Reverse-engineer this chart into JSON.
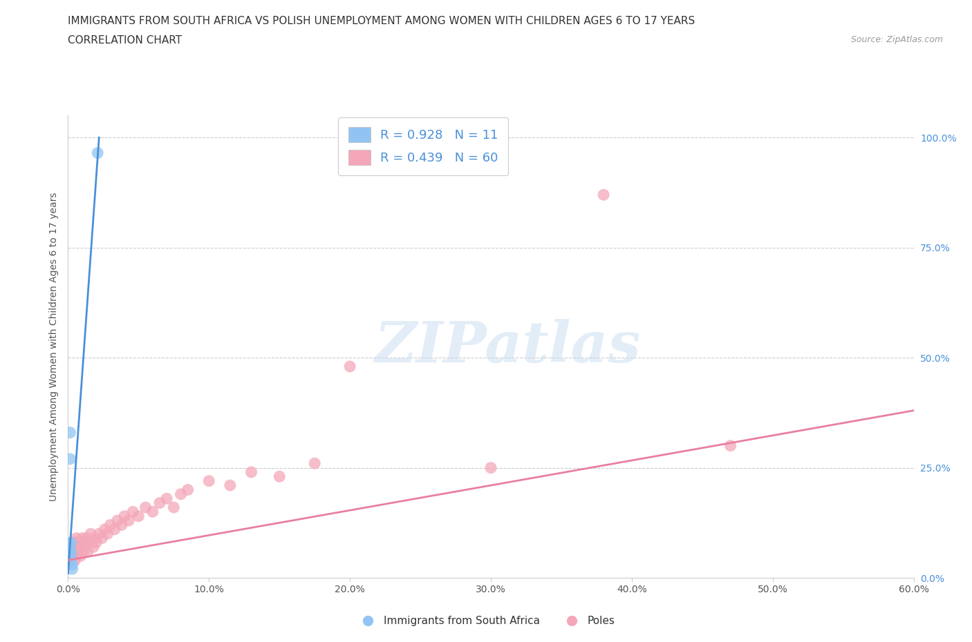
{
  "title_line1": "IMMIGRANTS FROM SOUTH AFRICA VS POLISH UNEMPLOYMENT AMONG WOMEN WITH CHILDREN AGES 6 TO 17 YEARS",
  "title_line2": "CORRELATION CHART",
  "source_text": "Source: ZipAtlas.com",
  "ylabel": "Unemployment Among Women with Children Ages 6 to 17 years",
  "xlim": [
    0.0,
    0.6
  ],
  "ylim": [
    0.0,
    1.05
  ],
  "yticks": [
    0.0,
    0.25,
    0.5,
    0.75,
    1.0
  ],
  "ytick_labels": [
    "0.0%",
    "25.0%",
    "50.0%",
    "75.0%",
    "100.0%"
  ],
  "xticks": [
    0.0,
    0.1,
    0.2,
    0.3,
    0.4,
    0.5,
    0.6
  ],
  "xtick_labels": [
    "0.0%",
    "10.0%",
    "20.0%",
    "30.0%",
    "40.0%",
    "50.0%",
    "60.0%"
  ],
  "blue_R": 0.928,
  "blue_N": 11,
  "pink_R": 0.439,
  "pink_N": 60,
  "blue_color": "#91C4F2",
  "pink_color": "#F4A7B9",
  "blue_line_color": "#4A90D9",
  "pink_line_color": "#E87FA0",
  "watermark_text": "ZIPatlas",
  "blue_scatter_x": [
    0.0005,
    0.001,
    0.001,
    0.0015,
    0.0015,
    0.002,
    0.002,
    0.002,
    0.003,
    0.003,
    0.021
  ],
  "blue_scatter_y": [
    0.035,
    0.065,
    0.075,
    0.27,
    0.33,
    0.05,
    0.06,
    0.08,
    0.03,
    0.02,
    0.965
  ],
  "pink_scatter_x": [
    0.001,
    0.001,
    0.002,
    0.002,
    0.002,
    0.003,
    0.003,
    0.003,
    0.004,
    0.004,
    0.004,
    0.005,
    0.005,
    0.005,
    0.006,
    0.006,
    0.006,
    0.007,
    0.007,
    0.008,
    0.009,
    0.01,
    0.01,
    0.011,
    0.012,
    0.013,
    0.014,
    0.015,
    0.016,
    0.018,
    0.019,
    0.02,
    0.022,
    0.024,
    0.026,
    0.028,
    0.03,
    0.033,
    0.035,
    0.038,
    0.04,
    0.043,
    0.046,
    0.05,
    0.055,
    0.06,
    0.065,
    0.07,
    0.075,
    0.08,
    0.085,
    0.1,
    0.115,
    0.13,
    0.15,
    0.175,
    0.2,
    0.3,
    0.38,
    0.47
  ],
  "pink_scatter_y": [
    0.04,
    0.06,
    0.04,
    0.06,
    0.08,
    0.05,
    0.06,
    0.08,
    0.05,
    0.06,
    0.08,
    0.04,
    0.06,
    0.08,
    0.05,
    0.06,
    0.09,
    0.06,
    0.08,
    0.07,
    0.05,
    0.07,
    0.09,
    0.06,
    0.08,
    0.09,
    0.06,
    0.08,
    0.1,
    0.07,
    0.09,
    0.08,
    0.1,
    0.09,
    0.11,
    0.1,
    0.12,
    0.11,
    0.13,
    0.12,
    0.14,
    0.13,
    0.15,
    0.14,
    0.16,
    0.15,
    0.17,
    0.18,
    0.16,
    0.19,
    0.2,
    0.22,
    0.21,
    0.24,
    0.23,
    0.26,
    0.48,
    0.25,
    0.87,
    0.3
  ],
  "blue_trendline_x": [
    0.0,
    0.022
  ],
  "blue_trendline_y": [
    0.01,
    1.0
  ],
  "pink_trendline_x": [
    0.0,
    0.6
  ],
  "pink_trendline_y": [
    0.04,
    0.38
  ]
}
